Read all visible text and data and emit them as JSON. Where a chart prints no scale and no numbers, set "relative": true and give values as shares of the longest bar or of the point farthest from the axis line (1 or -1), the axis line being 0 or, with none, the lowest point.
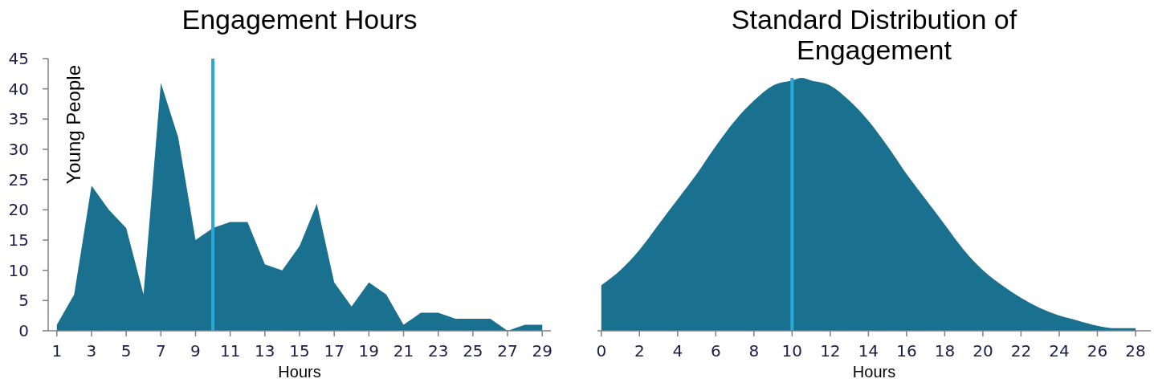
{
  "chart_data": [
    {
      "type": "area",
      "title": "Engagement Hours",
      "xlabel": "Hours",
      "ylabel": "Young People",
      "x": [
        1,
        2,
        3,
        4,
        5,
        6,
        7,
        8,
        9,
        10,
        11,
        12,
        13,
        14,
        15,
        16,
        17,
        18,
        19,
        20,
        21,
        22,
        23,
        24,
        25,
        26,
        27,
        28,
        29
      ],
      "series": [
        {
          "color": "#19708f",
          "values": [
            1,
            6,
            24,
            20,
            17,
            6,
            41,
            32,
            15,
            17,
            18,
            18,
            11,
            10,
            14,
            21,
            8,
            4,
            8,
            6,
            1,
            3,
            3,
            2,
            2,
            2,
            0,
            1,
            1
          ]
        }
      ],
      "xlim": [
        0.5,
        29.5
      ],
      "xticks": [
        1,
        3,
        5,
        7,
        9,
        11,
        13,
        15,
        17,
        19,
        21,
        23,
        25,
        27,
        29
      ],
      "ylim": [
        0,
        45
      ],
      "yticks": [
        0,
        5,
        10,
        15,
        20,
        25,
        30,
        35,
        40,
        45
      ],
      "ref_lines": [
        {
          "axis": "x",
          "value": 10,
          "color": "#2aa8d8"
        }
      ]
    },
    {
      "type": "area",
      "title": "Standard Distribution of Engagement",
      "xlabel": "Hours",
      "relative": true,
      "x": [
        0,
        1,
        2,
        3,
        4,
        5,
        6,
        7,
        8,
        9,
        10,
        10.5,
        11,
        12,
        13,
        14,
        15,
        16,
        17,
        18,
        19,
        20,
        21,
        22,
        23,
        24,
        25,
        26,
        27,
        28
      ],
      "series": [
        {
          "color": "#19708f",
          "values": [
            0.18,
            0.24,
            0.32,
            0.42,
            0.52,
            0.62,
            0.73,
            0.83,
            0.91,
            0.97,
            0.99,
            1,
            0.99,
            0.97,
            0.91,
            0.83,
            0.73,
            0.62,
            0.52,
            0.42,
            0.32,
            0.24,
            0.18,
            0.13,
            0.09,
            0.06,
            0.04,
            0.02,
            0.01,
            0.01
          ]
        }
      ],
      "xlim": [
        -0.2,
        28.8
      ],
      "xticks": [
        0,
        2,
        4,
        6,
        8,
        10,
        12,
        14,
        16,
        18,
        20,
        22,
        24,
        26,
        28
      ],
      "ref_lines": [
        {
          "axis": "x",
          "value": 10,
          "color": "#2aa8d8"
        }
      ]
    }
  ]
}
